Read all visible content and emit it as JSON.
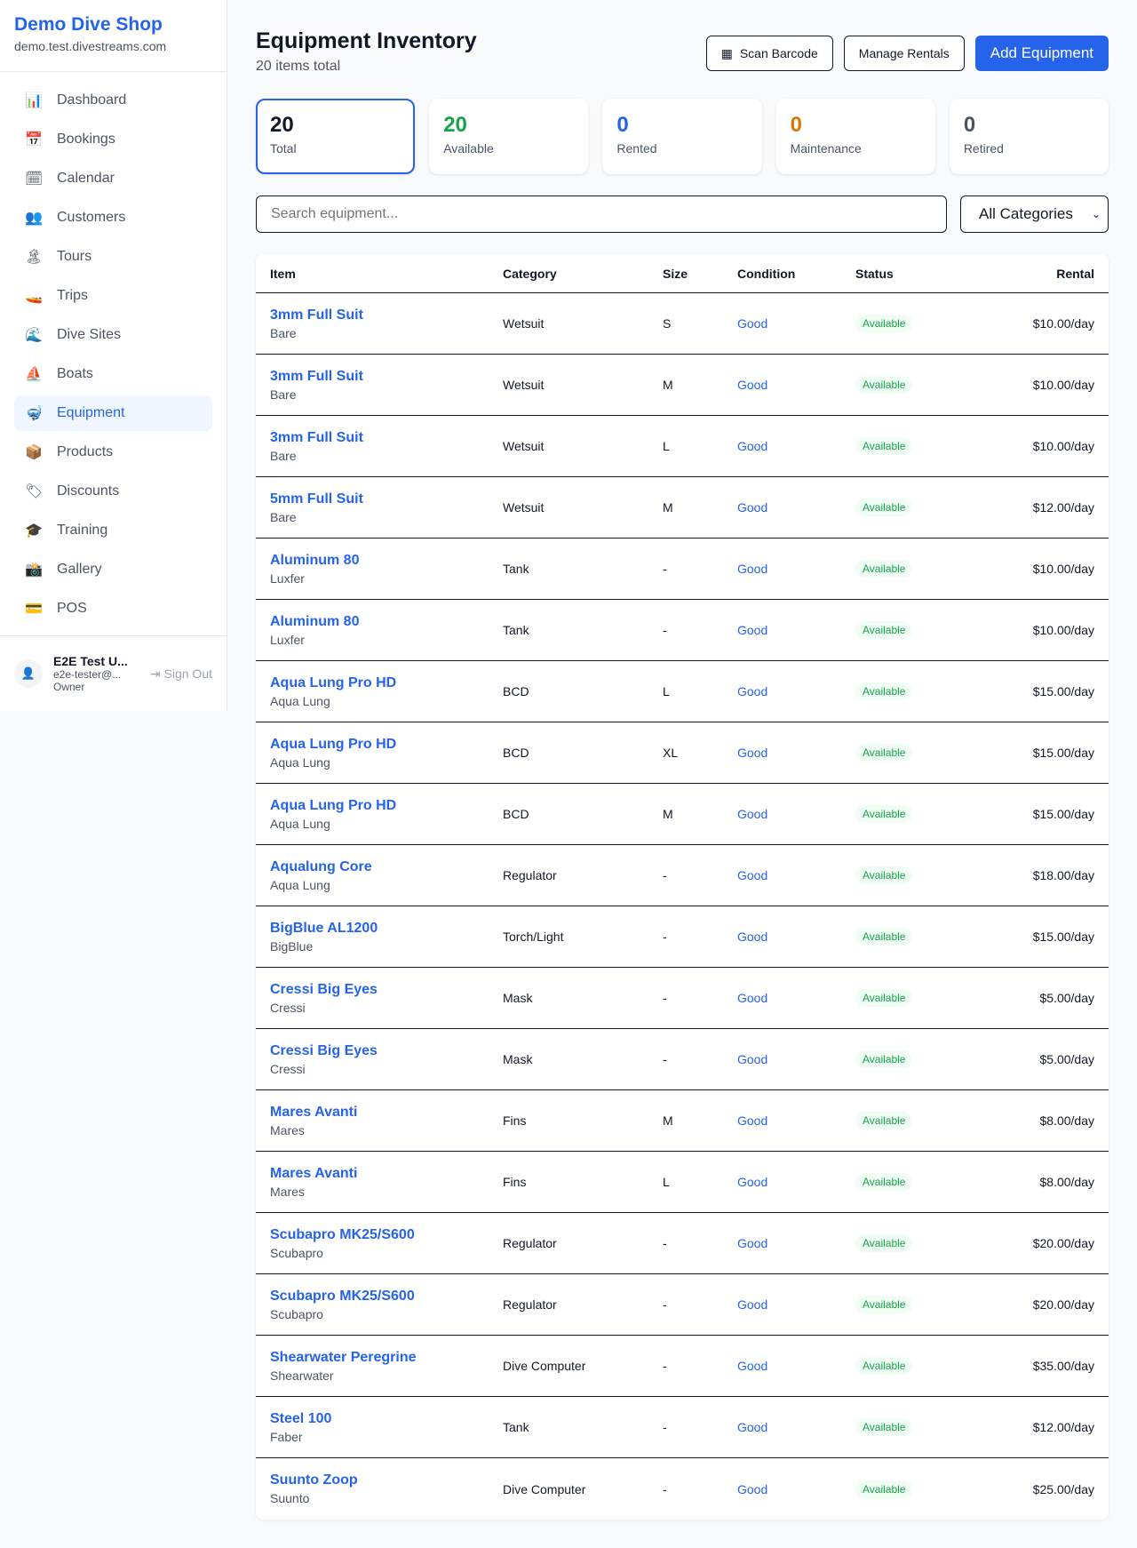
{
  "sidebar": {
    "brand": "Demo Dive Shop",
    "url": "demo.test.divestreams.com",
    "items": [
      {
        "label": "Dashboard",
        "icon": "📊"
      },
      {
        "label": "Bookings",
        "icon": "📅"
      },
      {
        "label": "Calendar",
        "icon": "🗓"
      },
      {
        "label": "Customers",
        "icon": "👥"
      },
      {
        "label": "Tours",
        "icon": "🏝"
      },
      {
        "label": "Trips",
        "icon": "🚤"
      },
      {
        "label": "Dive Sites",
        "icon": "🌊"
      },
      {
        "label": "Boats",
        "icon": "⛵"
      },
      {
        "label": "Equipment",
        "icon": "🤿",
        "active": true
      },
      {
        "label": "Products",
        "icon": "📦"
      },
      {
        "label": "Discounts",
        "icon": "🏷"
      },
      {
        "label": "Training",
        "icon": "🎓"
      },
      {
        "label": "Gallery",
        "icon": "📸"
      },
      {
        "label": "POS",
        "icon": "💳"
      }
    ],
    "user": {
      "name": "E2E Test U...",
      "email": "e2e-tester@...",
      "role": "Owner",
      "sign_out": "Sign Out"
    }
  },
  "header": {
    "title": "Equipment Inventory",
    "subtitle": "20 items total",
    "scan": "Scan Barcode",
    "manage": "Manage Rentals",
    "add": "Add Equipment"
  },
  "stats": [
    {
      "value": "20",
      "label": "Total",
      "color": "#111827"
    },
    {
      "value": "20",
      "label": "Available",
      "color": "#16a34a"
    },
    {
      "value": "0",
      "label": "Rented",
      "color": "#2563eb"
    },
    {
      "value": "0",
      "label": "Maintenance",
      "color": "#d97706"
    },
    {
      "value": "0",
      "label": "Retired",
      "color": "#4b5563"
    }
  ],
  "filters": {
    "search_placeholder": "Search equipment...",
    "category": "All Categories"
  },
  "table": {
    "headers": [
      "Item",
      "Category",
      "Size",
      "Condition",
      "Status",
      "Rental"
    ],
    "rows": [
      [
        "3mm Full Suit",
        "Bare",
        "Wetsuit",
        "S",
        "Good",
        "Available",
        "$10.00/day"
      ],
      [
        "3mm Full Suit",
        "Bare",
        "Wetsuit",
        "M",
        "Good",
        "Available",
        "$10.00/day"
      ],
      [
        "3mm Full Suit",
        "Bare",
        "Wetsuit",
        "L",
        "Good",
        "Available",
        "$10.00/day"
      ],
      [
        "5mm Full Suit",
        "Bare",
        "Wetsuit",
        "M",
        "Good",
        "Available",
        "$12.00/day"
      ],
      [
        "Aluminum 80",
        "Luxfer",
        "Tank",
        "-",
        "Good",
        "Available",
        "$10.00/day"
      ],
      [
        "Aluminum 80",
        "Luxfer",
        "Tank",
        "-",
        "Good",
        "Available",
        "$10.00/day"
      ],
      [
        "Aqua Lung Pro HD",
        "Aqua Lung",
        "BCD",
        "L",
        "Good",
        "Available",
        "$15.00/day"
      ],
      [
        "Aqua Lung Pro HD",
        "Aqua Lung",
        "BCD",
        "XL",
        "Good",
        "Available",
        "$15.00/day"
      ],
      [
        "Aqua Lung Pro HD",
        "Aqua Lung",
        "BCD",
        "M",
        "Good",
        "Available",
        "$15.00/day"
      ],
      [
        "Aqualung Core",
        "Aqua Lung",
        "Regulator",
        "-",
        "Good",
        "Available",
        "$18.00/day"
      ],
      [
        "BigBlue AL1200",
        "BigBlue",
        "Torch/Light",
        "-",
        "Good",
        "Available",
        "$15.00/day"
      ],
      [
        "Cressi Big Eyes",
        "Cressi",
        "Mask",
        "-",
        "Good",
        "Available",
        "$5.00/day"
      ],
      [
        "Cressi Big Eyes",
        "Cressi",
        "Mask",
        "-",
        "Good",
        "Available",
        "$5.00/day"
      ],
      [
        "Mares Avanti",
        "Mares",
        "Fins",
        "M",
        "Good",
        "Available",
        "$8.00/day"
      ],
      [
        "Mares Avanti",
        "Mares",
        "Fins",
        "L",
        "Good",
        "Available",
        "$8.00/day"
      ],
      [
        "Scubapro MK25/S600",
        "Scubapro",
        "Regulator",
        "-",
        "Good",
        "Available",
        "$20.00/day"
      ],
      [
        "Scubapro MK25/S600",
        "Scubapro",
        "Regulator",
        "-",
        "Good",
        "Available",
        "$20.00/day"
      ],
      [
        "Shearwater Peregrine",
        "Shearwater",
        "Dive Computer",
        "-",
        "Good",
        "Available",
        "$35.00/day"
      ],
      [
        "Steel 100",
        "Faber",
        "Tank",
        "-",
        "Good",
        "Available",
        "$12.00/day"
      ],
      [
        "Suunto Zoop",
        "Suunto",
        "Dive Computer",
        "-",
        "Good",
        "Available",
        "$25.00/day"
      ]
    ]
  }
}
